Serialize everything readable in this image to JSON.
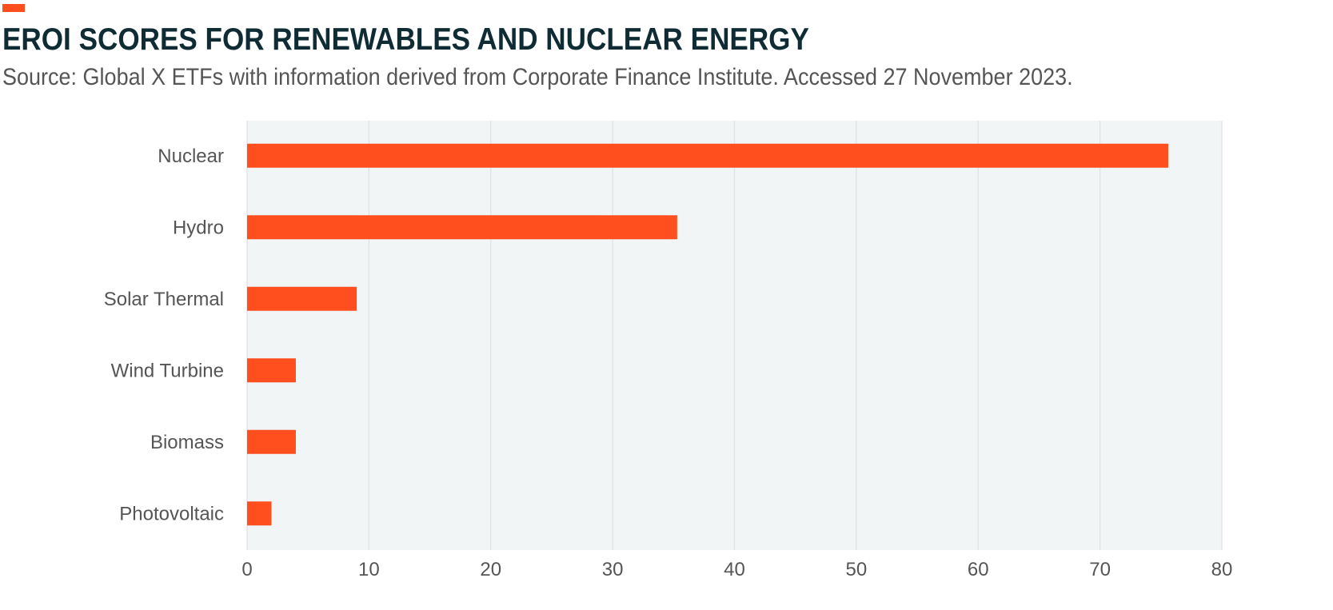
{
  "title": "EROI SCORES FOR RENEWABLES AND NUCLEAR ENERGY",
  "subtitle": "Source: Global X ETFs with information derived from Corporate Finance Institute. Accessed 27 November 2023.",
  "colors": {
    "bar": "#ff4f1f",
    "title": "#0f2b33",
    "plot_bg": "#f1f5f6",
    "grid": "#dde2e4"
  },
  "chart_data": {
    "type": "bar",
    "orientation": "horizontal",
    "categories": [
      "Nuclear",
      "Hydro",
      "Solar Thermal",
      "Wind Turbine",
      "Biomass",
      "Photovoltaic"
    ],
    "values": [
      75.6,
      35.3,
      9,
      4,
      4,
      2
    ],
    "xlim": [
      0,
      80
    ],
    "xticks": [
      "0",
      "10",
      "20",
      "30",
      "40",
      "50",
      "60",
      "70",
      "80"
    ],
    "grid": "vertical",
    "xlabel": "",
    "ylabel": ""
  }
}
